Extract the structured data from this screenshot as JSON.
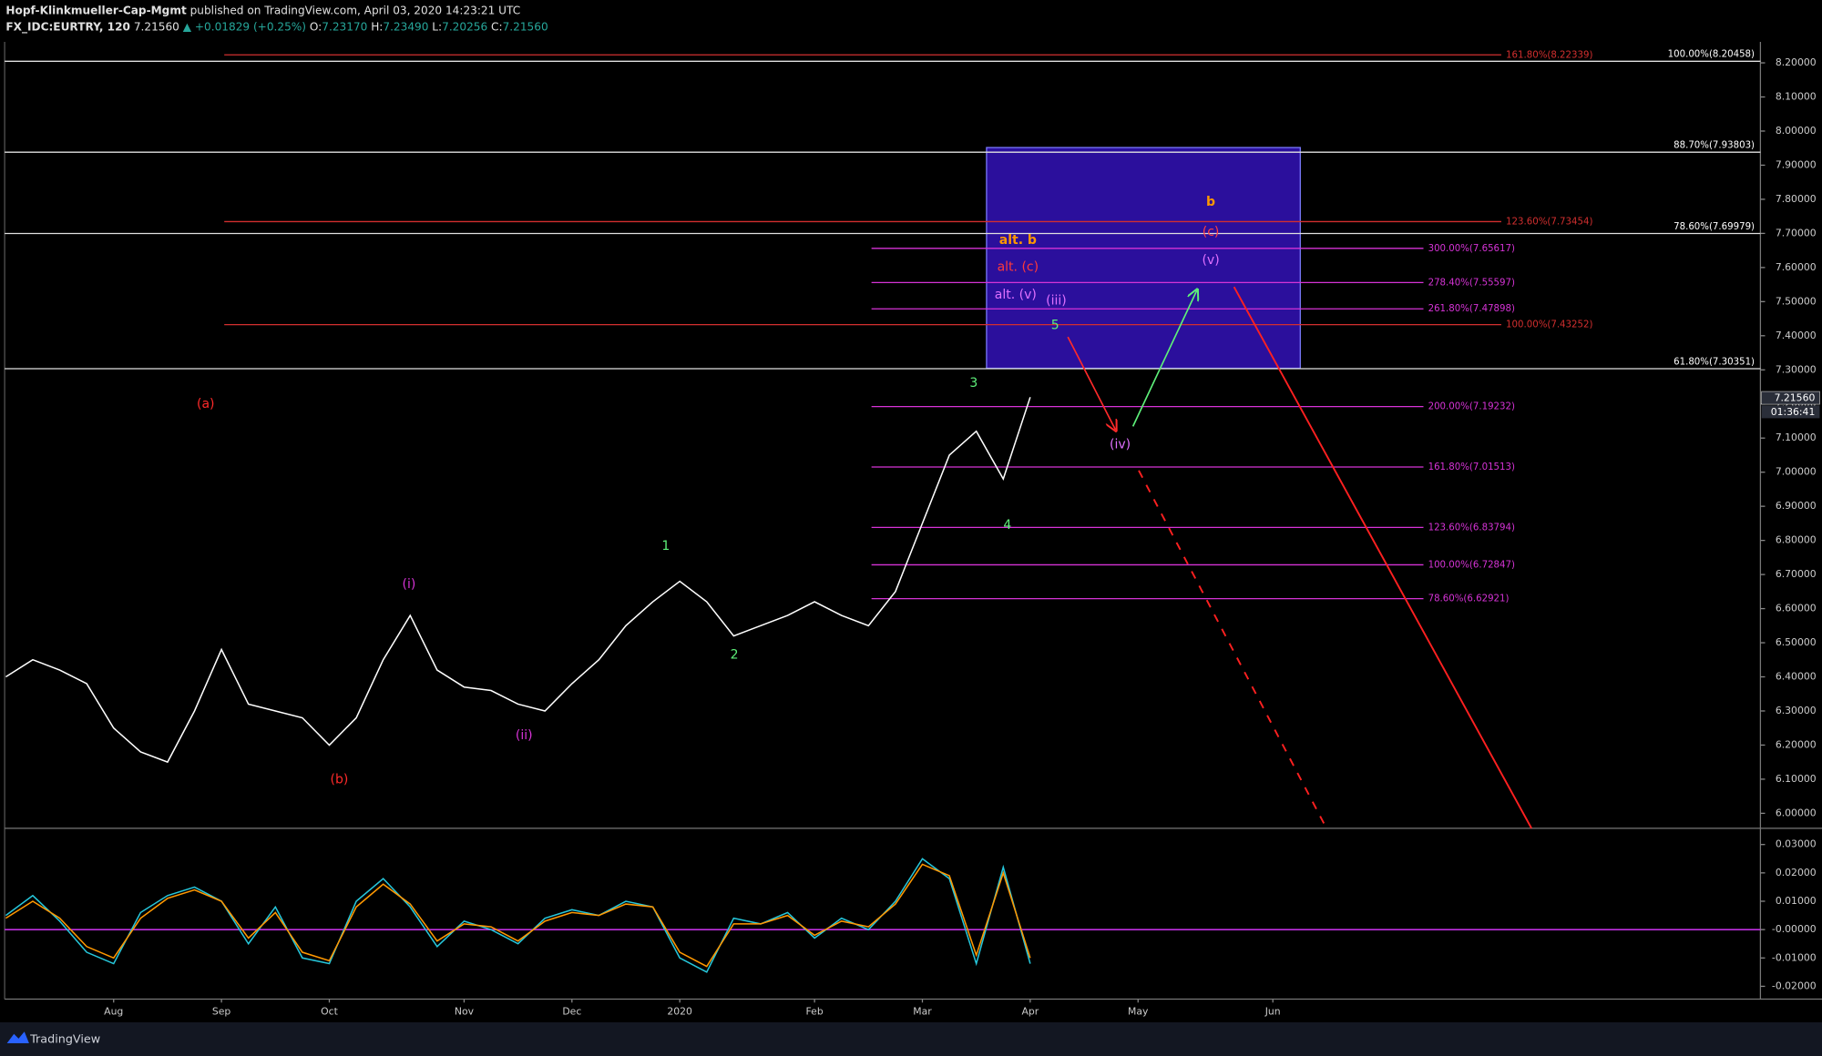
{
  "header": {
    "author": "Hopf-Klinkmueller-Cap-Mgmt",
    "published": "published on TradingView.com, April 03, 2020 14:23:21 UTC",
    "symbol": "FX_IDC:EURTRY, 120",
    "last": "7.21560",
    "change": "▲ +0.01829 (+0.25%)",
    "o_key": "O:",
    "o": "7.23170",
    "h_key": "H:",
    "h": "7.23490",
    "l_key": "L:",
    "l": "7.20256",
    "c_key": "C:",
    "c": "7.21560"
  },
  "price_badge": "7.21560",
  "countdown": "01:36:41",
  "footer": "TradingView",
  "annotations": [
    "(a)",
    "(b)",
    "(i)",
    "(ii)",
    "1",
    "2",
    "3",
    "4",
    "5",
    "(iii)",
    "(iv)",
    "(v)",
    "(c)",
    "b",
    "alt. b",
    "alt. (c)",
    "alt. (v)"
  ],
  "chart_data": [
    {
      "type": "line",
      "color": "#ffffff",
      "categories": [
        null,
        null,
        null,
        null,
        "Aug",
        null,
        null,
        null,
        "Sep",
        null,
        null,
        null,
        "Oct",
        null,
        null,
        null,
        null,
        "Nov",
        null,
        null,
        null,
        "Dec",
        null,
        null,
        null,
        "2020",
        null,
        null,
        null,
        null,
        "Feb",
        null,
        null,
        null,
        "Mar",
        null,
        null,
        null,
        "Apr",
        null,
        null,
        null,
        "May",
        null,
        null,
        null,
        null,
        "Jun",
        null,
        null,
        null,
        null,
        null,
        null,
        null,
        null,
        null,
        null,
        null,
        null,
        null,
        null,
        null,
        null,
        null
      ],
      "values": [
        6.4,
        6.45,
        6.42,
        6.38,
        6.25,
        6.18,
        6.15,
        6.3,
        6.48,
        6.32,
        6.3,
        6.28,
        6.2,
        6.28,
        6.45,
        6.58,
        6.42,
        6.37,
        6.36,
        6.32,
        6.3,
        6.38,
        6.45,
        6.55,
        6.62,
        6.68,
        6.62,
        6.52,
        6.55,
        6.58,
        6.62,
        6.58,
        6.55,
        6.65,
        6.85,
        7.05,
        7.12,
        6.98,
        7.22,
        null,
        null,
        null,
        null,
        null,
        null,
        null,
        null,
        null,
        null,
        null,
        null,
        null,
        null,
        null,
        null,
        null,
        null,
        null,
        null,
        null,
        null,
        null,
        null,
        null,
        null
      ],
      "ylim": [
        5.956,
        8.248
      ],
      "yticks": [
        {
          "value": 8.2,
          "label": "8.20000"
        },
        {
          "value": 8.1,
          "label": "8.10000"
        },
        {
          "value": 8.0,
          "label": "8.00000"
        },
        {
          "value": 7.9,
          "label": "7.90000"
        },
        {
          "value": 7.8,
          "label": "7.80000"
        },
        {
          "value": 7.7,
          "label": "7.70000"
        },
        {
          "value": 7.6,
          "label": "7.60000"
        },
        {
          "value": 7.5,
          "label": "7.50000"
        },
        {
          "value": 7.4,
          "label": "7.40000"
        },
        {
          "value": 7.3,
          "label": "7.30000"
        },
        {
          "value": 7.2,
          "label": "7.20000"
        },
        {
          "value": 7.1,
          "label": "7.10000"
        },
        {
          "value": 7.0,
          "label": "7.00000"
        },
        {
          "value": 6.9,
          "label": "6.90000"
        },
        {
          "value": 6.8,
          "label": "6.80000"
        },
        {
          "value": 6.7,
          "label": "6.70000"
        },
        {
          "value": 6.6,
          "label": "6.60000"
        },
        {
          "value": 6.5,
          "label": "6.50000"
        },
        {
          "value": 6.4,
          "label": "6.40000"
        },
        {
          "value": 6.3,
          "label": "6.30000"
        },
        {
          "value": 6.2,
          "label": "6.20000"
        },
        {
          "value": 6.1,
          "label": "6.10000"
        },
        {
          "value": 6.0,
          "label": "6.00000"
        }
      ],
      "fib_sets": [
        {
          "color": "#d32f2f",
          "levels": [
            {
              "value": 8.22339,
              "label": "161.80%(8.22339)"
            },
            {
              "value": 7.73454,
              "label": "123.60%(7.73454)"
            },
            {
              "value": 7.43252,
              "label": "100.00%(7.43252)"
            }
          ]
        },
        {
          "color": "#e0e0e0",
          "levels": [
            {
              "value": 8.20458,
              "label": "100.00%(8.20458)"
            },
            {
              "value": 7.93803,
              "label": "88.70%(7.93803)"
            },
            {
              "value": 7.69979,
              "label": "78.60%(7.69979)"
            },
            {
              "value": 7.30351,
              "label": "61.80%(7.30351)"
            }
          ]
        },
        {
          "color": "#d633d6",
          "levels": [
            {
              "value": 7.65617,
              "label": "300.00%(7.65617)"
            },
            {
              "value": 7.55597,
              "label": "278.40%(7.55597)"
            },
            {
              "value": 7.47898,
              "label": "261.80%(7.47898)"
            },
            {
              "value": 7.19232,
              "label": "200.00%(7.19232)"
            },
            {
              "value": 7.01513,
              "label": "161.80%(7.01513)"
            },
            {
              "value": 6.83794,
              "label": "123.60%(6.83794)"
            },
            {
              "value": 6.72847,
              "label": "100.00%(6.72847)"
            },
            {
              "value": 6.62921,
              "label": "78.60%(6.62921)"
            }
          ]
        }
      ]
    },
    {
      "type": "line",
      "zero_color": "#c030e0",
      "series": [
        {
          "color": "#26c6da",
          "values": [
            0.005,
            0.012,
            0.003,
            -0.008,
            -0.012,
            0.006,
            0.012,
            0.015,
            0.01,
            -0.005,
            0.008,
            -0.01,
            -0.012,
            0.01,
            0.018,
            0.008,
            -0.006,
            0.003,
            0.0,
            -0.005,
            0.004,
            0.007,
            0.005,
            0.01,
            0.008,
            -0.01,
            -0.015,
            0.004,
            0.002,
            0.006,
            -0.003,
            0.004,
            0.0,
            0.01,
            0.025,
            0.018,
            -0.012,
            0.022,
            -0.012,
            null,
            null,
            null,
            null,
            null,
            null,
            null,
            null,
            null,
            null,
            null,
            null,
            null,
            null,
            null,
            null,
            null,
            null,
            null,
            null,
            null,
            null,
            null,
            null,
            null,
            null
          ]
        },
        {
          "color": "#ff9800",
          "values": [
            0.004,
            0.01,
            0.004,
            -0.006,
            -0.01,
            0.004,
            0.011,
            0.014,
            0.01,
            -0.003,
            0.006,
            -0.008,
            -0.011,
            0.008,
            0.016,
            0.009,
            -0.004,
            0.002,
            0.001,
            -0.004,
            0.003,
            0.006,
            0.005,
            0.009,
            0.008,
            -0.008,
            -0.013,
            0.002,
            0.002,
            0.005,
            -0.002,
            0.003,
            0.001,
            0.009,
            0.023,
            0.019,
            -0.009,
            0.02,
            -0.01,
            null,
            null,
            null,
            null,
            null,
            null,
            null,
            null,
            null,
            null,
            null,
            null,
            null,
            null,
            null,
            null,
            null,
            null,
            null,
            null,
            null,
            null,
            null,
            null,
            null,
            null
          ]
        }
      ],
      "y2lim": [
        -0.0245,
        0.0349
      ],
      "y2ticks": [
        {
          "value": 0.03,
          "label": "0.03000"
        },
        {
          "value": 0.02,
          "label": "0.02000"
        },
        {
          "value": 0.01,
          "label": "0.01000"
        },
        {
          "value": 0,
          "label": "-0.00000"
        },
        {
          "value": -0.01,
          "label": "-0.01000"
        },
        {
          "value": -0.02,
          "label": "-0.02000"
        }
      ]
    }
  ]
}
